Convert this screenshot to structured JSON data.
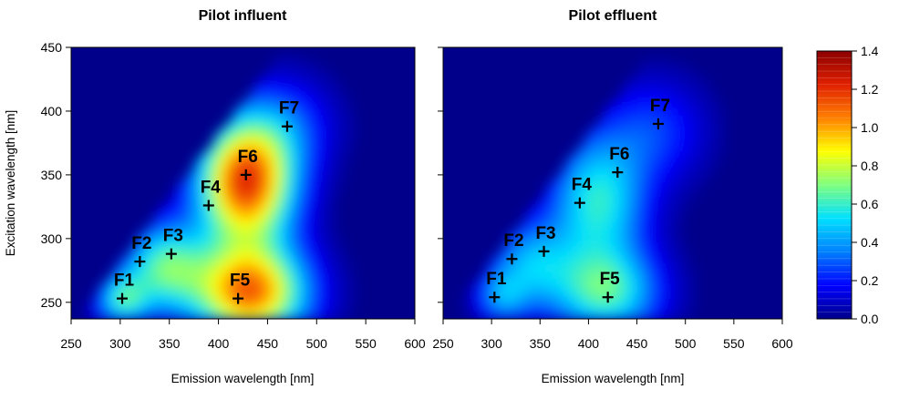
{
  "chart_data": {
    "type": "heatmap",
    "colorbar": {
      "min": 0.0,
      "max": 1.4,
      "ticks": [
        0.0,
        0.2,
        0.4,
        0.6,
        0.8,
        1.0,
        1.2,
        1.4
      ],
      "tick_labels": [
        "0.0",
        "0.2",
        "0.4",
        "0.6",
        "0.8",
        "1.0",
        "1.2",
        "1.4"
      ],
      "colors": [
        "#00008b",
        "#0000ff",
        "#0080ff",
        "#00e0ff",
        "#7fff7f",
        "#ffff00",
        "#ff8000",
        "#e02000",
        "#8b0000"
      ]
    },
    "panels": [
      {
        "title": "Pilot influent",
        "xlabel": "Emission wavelength [nm]",
        "ylabel": "Excitation wavelength [nm]",
        "xlim": [
          250,
          600
        ],
        "ylim": [
          237,
          450
        ],
        "xticks": [
          250,
          300,
          350,
          400,
          450,
          500,
          550,
          600
        ],
        "yticks": [
          250,
          300,
          350,
          400,
          450
        ],
        "peaks": [
          {
            "label": "F1",
            "em": 302,
            "ex": 253
          },
          {
            "label": "F2",
            "em": 320,
            "ex": 282
          },
          {
            "label": "F3",
            "em": 352,
            "ex": 288
          },
          {
            "label": "F4",
            "em": 390,
            "ex": 326
          },
          {
            "label": "F5",
            "em": 420,
            "ex": 253
          },
          {
            "label": "F6",
            "em": 428,
            "ex": 350
          },
          {
            "label": "F7",
            "em": 470,
            "ex": 388
          }
        ],
        "components": [
          {
            "em": 428,
            "ex": 345,
            "amp": 1.2,
            "sem": 34,
            "sex": 34
          },
          {
            "em": 432,
            "ex": 258,
            "amp": 1.08,
            "sem": 40,
            "sex": 26
          },
          {
            "em": 345,
            "ex": 278,
            "amp": 0.62,
            "sem": 30,
            "sex": 24
          },
          {
            "em": 302,
            "ex": 252,
            "amp": 0.52,
            "sem": 18,
            "sex": 14
          },
          {
            "em": 470,
            "ex": 390,
            "amp": 0.22,
            "sem": 34,
            "sex": 26
          }
        ]
      },
      {
        "title": "Pilot effluent",
        "xlabel": "Emission wavelength [nm]",
        "xlim": [
          250,
          600
        ],
        "ylim": [
          237,
          450
        ],
        "xticks": [
          250,
          300,
          350,
          400,
          450,
          500,
          550,
          600
        ],
        "yticks": [
          250,
          300,
          350,
          400,
          450
        ],
        "peaks": [
          {
            "label": "F1",
            "em": 303,
            "ex": 254
          },
          {
            "label": "F2",
            "em": 321,
            "ex": 284
          },
          {
            "label": "F3",
            "em": 354,
            "ex": 290
          },
          {
            "label": "F4",
            "em": 391,
            "ex": 328
          },
          {
            "label": "F5",
            "em": 420,
            "ex": 254
          },
          {
            "label": "F6",
            "em": 430,
            "ex": 352
          },
          {
            "label": "F7",
            "em": 472,
            "ex": 390
          }
        ],
        "components": [
          {
            "em": 410,
            "ex": 330,
            "amp": 0.58,
            "sem": 34,
            "sex": 36
          },
          {
            "em": 418,
            "ex": 258,
            "amp": 0.6,
            "sem": 38,
            "sex": 24
          },
          {
            "em": 340,
            "ex": 280,
            "amp": 0.42,
            "sem": 30,
            "sex": 24
          },
          {
            "em": 310,
            "ex": 254,
            "amp": 0.32,
            "sem": 18,
            "sex": 14
          },
          {
            "em": 468,
            "ex": 385,
            "amp": 0.24,
            "sem": 36,
            "sex": 28
          }
        ]
      }
    ]
  }
}
